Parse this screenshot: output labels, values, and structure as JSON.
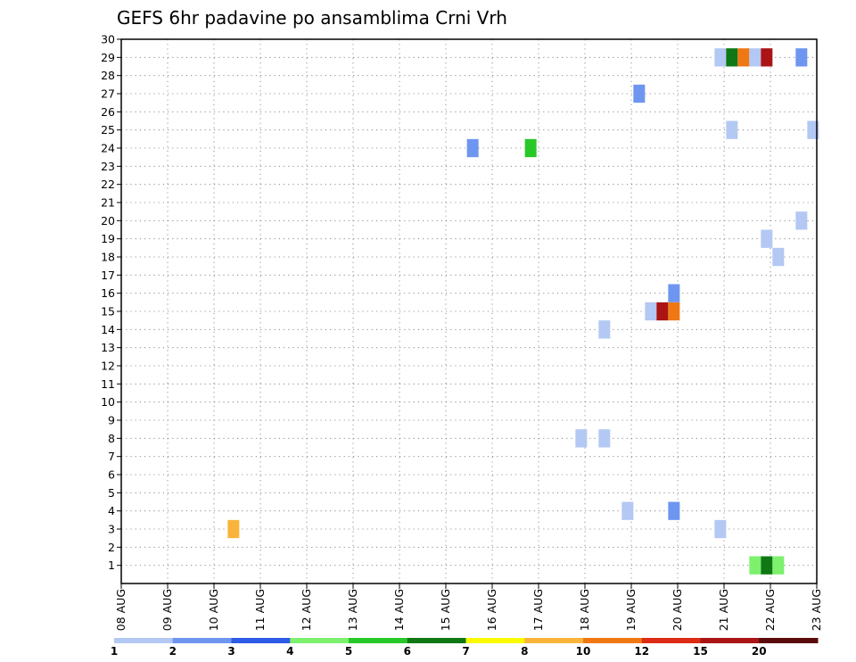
{
  "chart_data": {
    "type": "heatmap",
    "title": "GEFS 6hr padavine po ansamblima Crni Vrh",
    "xlabel": "",
    "ylabel": "",
    "x_tick_labels": [
      "08 AUG",
      "09 AUG",
      "10 AUG",
      "11 AUG",
      "12 AUG",
      "13 AUG",
      "14 AUG",
      "15 AUG",
      "16 AUG",
      "17 AUG",
      "18 AUG",
      "19 AUG",
      "20 AUG",
      "21 AUG",
      "22 AUG",
      "23 AUG"
    ],
    "x_range_days": [
      0,
      15
    ],
    "y_tick_labels": [
      "1",
      "2",
      "3",
      "4",
      "5",
      "6",
      "7",
      "8",
      "9",
      "10",
      "11",
      "12",
      "13",
      "14",
      "15",
      "16",
      "17",
      "18",
      "19",
      "20",
      "21",
      "22",
      "23",
      "24",
      "25",
      "26",
      "27",
      "28",
      "29",
      "30"
    ],
    "y_range": [
      0,
      30
    ],
    "grid": true,
    "legend_placement": "bottom",
    "legend": {
      "labels": [
        "1",
        "2",
        "3",
        "4",
        "5",
        "6",
        "7",
        "8",
        "10",
        "12",
        "15",
        "20"
      ],
      "colors": [
        "#b4c8f4",
        "#6e96f0",
        "#2d5ae6",
        "#7df06e",
        "#28c828",
        "#0f7814",
        "#fafa00",
        "#fab43c",
        "#f07814",
        "#dc2d14",
        "#aa1414",
        "#5a0a0a"
      ]
    },
    "cells": [
      {
        "x": 2.42,
        "y": 3,
        "value": 8
      },
      {
        "x": 7.58,
        "y": 24,
        "value": 2
      },
      {
        "x": 8.83,
        "y": 24,
        "value": 5
      },
      {
        "x": 9.92,
        "y": 8,
        "value": 1
      },
      {
        "x": 10.42,
        "y": 8,
        "value": 1
      },
      {
        "x": 10.42,
        "y": 14,
        "value": 1
      },
      {
        "x": 10.92,
        "y": 4,
        "value": 1
      },
      {
        "x": 11.17,
        "y": 27,
        "value": 2
      },
      {
        "x": 11.42,
        "y": 15,
        "value": 1
      },
      {
        "x": 11.67,
        "y": 15,
        "value": 15
      },
      {
        "x": 11.92,
        "y": 15,
        "value": 10
      },
      {
        "x": 11.92,
        "y": 16,
        "value": 2
      },
      {
        "x": 11.92,
        "y": 4,
        "value": 2
      },
      {
        "x": 12.92,
        "y": 29,
        "value": 1
      },
      {
        "x": 12.92,
        "y": 3,
        "value": 1
      },
      {
        "x": 13.17,
        "y": 29,
        "value": 6
      },
      {
        "x": 13.17,
        "y": 25,
        "value": 1
      },
      {
        "x": 13.42,
        "y": 29,
        "value": 10
      },
      {
        "x": 13.67,
        "y": 29,
        "value": 1
      },
      {
        "x": 13.67,
        "y": 1,
        "value": 4
      },
      {
        "x": 13.92,
        "y": 29,
        "value": 15
      },
      {
        "x": 13.92,
        "y": 19,
        "value": 1
      },
      {
        "x": 13.92,
        "y": 1,
        "value": 6
      },
      {
        "x": 14.17,
        "y": 18,
        "value": 1
      },
      {
        "x": 14.17,
        "y": 1,
        "value": 4
      },
      {
        "x": 14.67,
        "y": 29,
        "value": 2
      },
      {
        "x": 14.67,
        "y": 20,
        "value": 1
      },
      {
        "x": 14.92,
        "y": 25,
        "value": 1
      }
    ]
  }
}
